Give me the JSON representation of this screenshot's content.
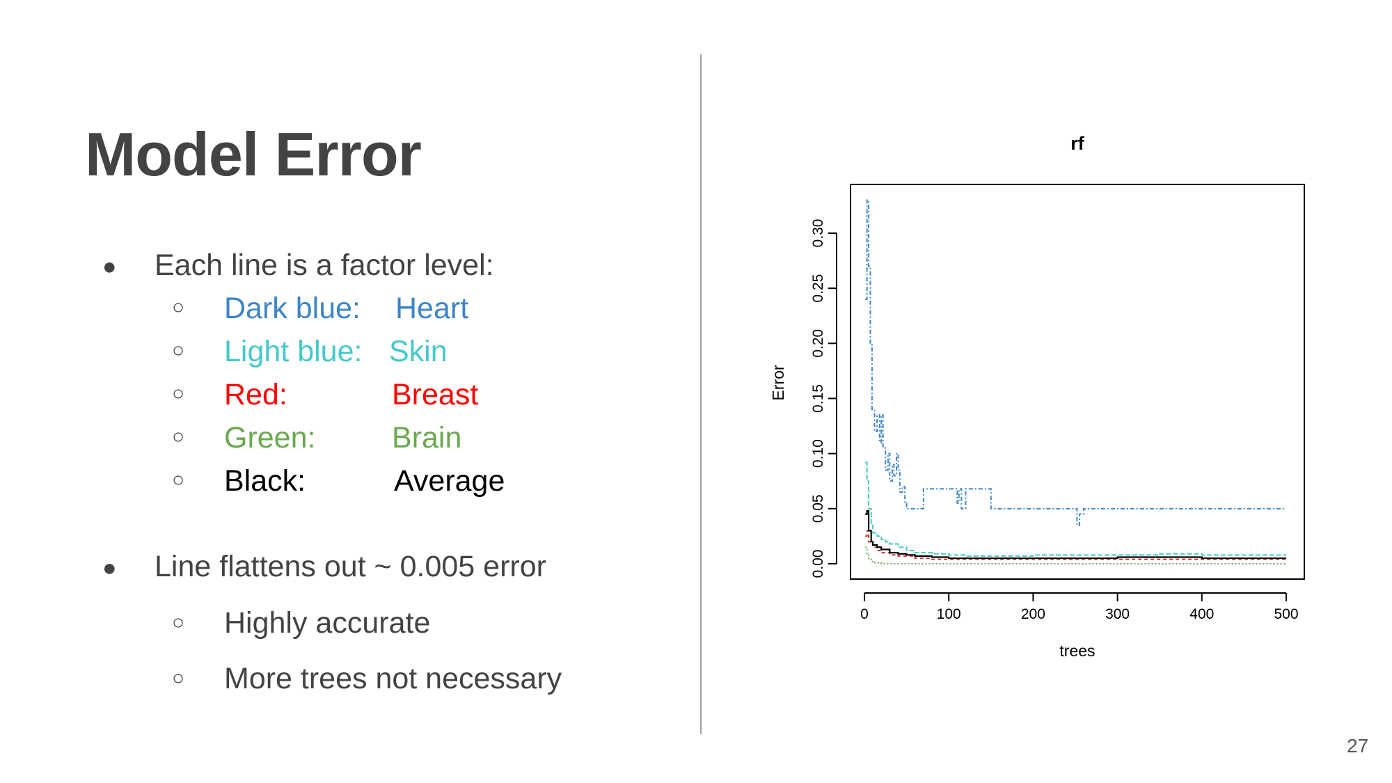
{
  "slide": {
    "title": "Model Error",
    "page_number": "27",
    "bullet1": {
      "text": "Each line is a factor level:",
      "items": [
        {
          "label": "Dark blue:",
          "value": "Heart",
          "color": "#3d85c6"
        },
        {
          "label": "Light blue:",
          "value": "Skin",
          "color": "#45c9c9"
        },
        {
          "label": "Red:",
          "value": "Breast",
          "color": "#ff0000"
        },
        {
          "label": "Green:",
          "value": "Brain",
          "color": "#6aa84f"
        },
        {
          "label": "Black:",
          "value": "Average",
          "color": "#000000"
        }
      ]
    },
    "bullet2": {
      "text": "Line flattens out ~ 0.005 error",
      "items": [
        "Highly accurate",
        "More trees not necessary"
      ]
    }
  },
  "chart_data": {
    "type": "line",
    "title": "rf",
    "xlabel": "trees",
    "ylabel": "Error",
    "xlim": [
      0,
      500
    ],
    "ylim": [
      0,
      0.33
    ],
    "xticks": [
      "0",
      "100",
      "200",
      "300",
      "400",
      "500"
    ],
    "yticks": [
      "0.00",
      "0.05",
      "0.10",
      "0.15",
      "0.20",
      "0.25",
      "0.30"
    ],
    "series": [
      {
        "color": "#3d85c6",
        "dash": "6,3,2,3",
        "x": [
          1,
          3,
          5,
          7,
          9,
          12,
          15,
          18,
          20,
          22,
          25,
          28,
          30,
          33,
          35,
          38,
          40,
          42,
          45,
          48,
          50,
          55,
          60,
          65,
          70,
          80,
          90,
          100,
          105,
          110,
          112,
          115,
          120,
          130,
          140,
          150,
          200,
          250,
          252,
          255,
          260,
          300,
          350,
          400,
          450,
          500
        ],
        "y": [
          0.24,
          0.33,
          0.27,
          0.2,
          0.14,
          0.12,
          0.135,
          0.11,
          0.135,
          0.105,
          0.085,
          0.1,
          0.075,
          0.09,
          0.08,
          0.1,
          0.085,
          0.065,
          0.07,
          0.055,
          0.05,
          0.05,
          0.05,
          0.05,
          0.068,
          0.068,
          0.068,
          0.068,
          0.068,
          0.055,
          0.068,
          0.05,
          0.068,
          0.068,
          0.068,
          0.05,
          0.05,
          0.05,
          0.035,
          0.045,
          0.05,
          0.05,
          0.05,
          0.05,
          0.05,
          0.05
        ]
      },
      {
        "color": "#45c9c9",
        "dash": "7,3",
        "x": [
          1,
          3,
          5,
          8,
          10,
          15,
          20,
          25,
          30,
          40,
          50,
          60,
          80,
          100,
          120,
          150,
          200,
          250,
          300,
          350,
          400,
          450,
          500
        ],
        "y": [
          0.092,
          0.075,
          0.05,
          0.035,
          0.028,
          0.025,
          0.022,
          0.02,
          0.018,
          0.015,
          0.012,
          0.01,
          0.009,
          0.008,
          0.007,
          0.007,
          0.008,
          0.008,
          0.008,
          0.009,
          0.008,
          0.008,
          0.008
        ]
      },
      {
        "color": "#cc3333",
        "dash": "5,4",
        "x": [
          1,
          3,
          5,
          10,
          15,
          20,
          30,
          40,
          60,
          80,
          100,
          150,
          200,
          300,
          400,
          500
        ],
        "y": [
          0.025,
          0.03,
          0.02,
          0.015,
          0.012,
          0.01,
          0.008,
          0.007,
          0.005,
          0.004,
          0.004,
          0.004,
          0.004,
          0.004,
          0.004,
          0.004
        ]
      },
      {
        "color": "#6aa84f",
        "dash": "2,3",
        "x": [
          1,
          3,
          5,
          8,
          10,
          20,
          50,
          100,
          200,
          300,
          400,
          500
        ],
        "y": [
          0.015,
          0.008,
          0.004,
          0.002,
          0.001,
          0.0,
          0.0,
          0.0,
          0.0,
          0.0,
          0.0,
          0.0
        ]
      },
      {
        "color": "#000000",
        "dash": "",
        "x": [
          1,
          3,
          5,
          8,
          10,
          15,
          20,
          30,
          40,
          50,
          60,
          80,
          100,
          150,
          200,
          250,
          300,
          350,
          400,
          450,
          500
        ],
        "y": [
          0.045,
          0.048,
          0.03,
          0.02,
          0.017,
          0.015,
          0.013,
          0.01,
          0.009,
          0.008,
          0.007,
          0.006,
          0.005,
          0.005,
          0.005,
          0.005,
          0.006,
          0.006,
          0.005,
          0.005,
          0.005
        ]
      }
    ]
  }
}
